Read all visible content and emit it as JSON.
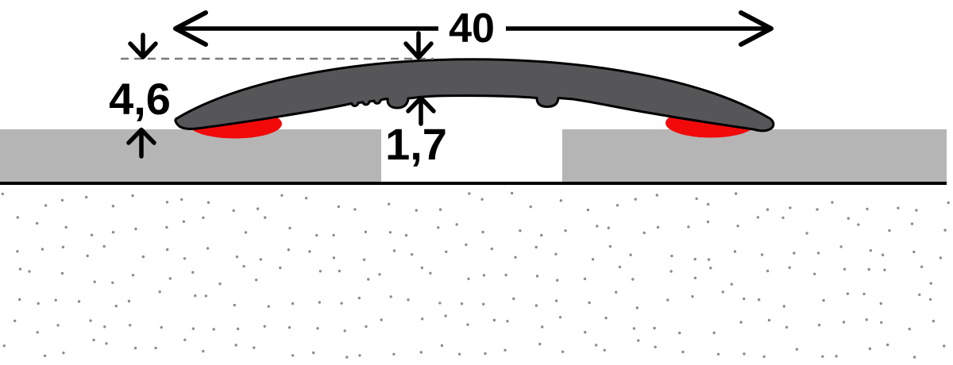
{
  "diagram": {
    "name": "floor-transition-profile-cross-section",
    "dimensions": {
      "width_mm": {
        "label": "40"
      },
      "height_mm": {
        "label": "4,6"
      },
      "thickness_mm": {
        "label": "1,7"
      }
    },
    "colors": {
      "background": "#ffffff",
      "profile": "#565659",
      "adhesive_pad": "#f20a0a",
      "floor_panel": "#b5b5b6",
      "subfloor_dot": "#8c8c8c",
      "dashed_line": "#7b7b7b",
      "outline": "#000000"
    }
  }
}
